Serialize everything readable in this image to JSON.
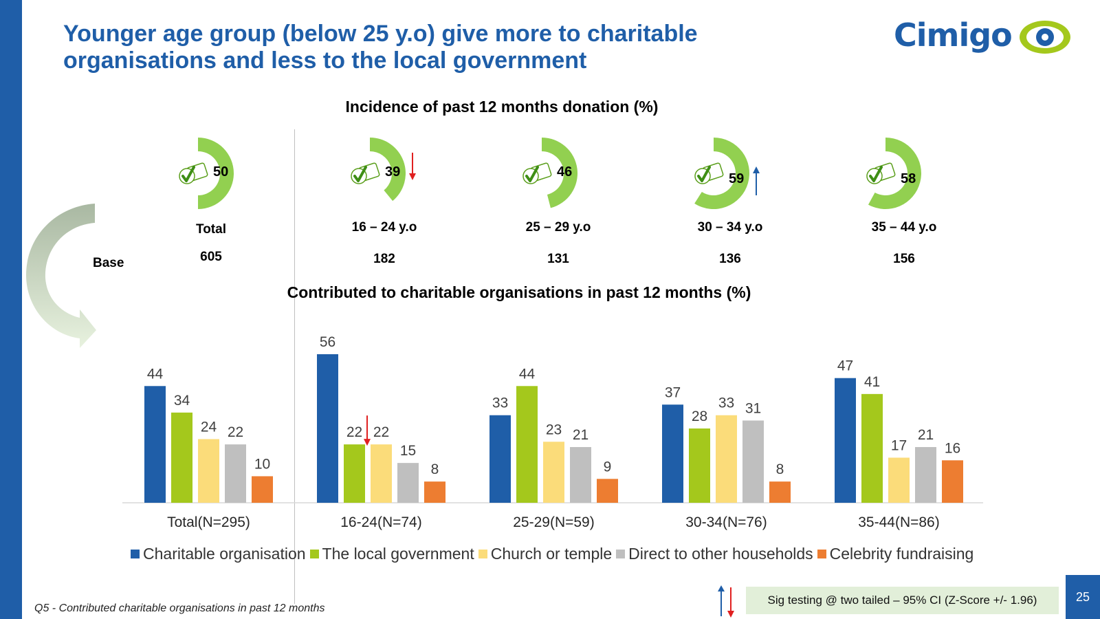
{
  "title": "Younger age group (below 25 y.o) give more to charitable organisations and less to the local government",
  "logo": {
    "text": "Cimigo",
    "icon": "eye-icon"
  },
  "donation": {
    "title": "Incidence of past 12 months donation (%)",
    "base_label": "Base",
    "groups": [
      {
        "label": "Total",
        "value": 50,
        "base": "605",
        "sig": ""
      },
      {
        "label": "16 – 24 y.o",
        "value": 39,
        "base": "182",
        "sig": "down"
      },
      {
        "label": "25 – 29 y.o",
        "value": 46,
        "base": "131",
        "sig": ""
      },
      {
        "label": "30 – 34 y.o",
        "value": 59,
        "base": "136",
        "sig": "up"
      },
      {
        "label": "35 – 44 y.o",
        "value": 58,
        "base": "156",
        "sig": ""
      }
    ],
    "badge_icon": "yes-check-badge-icon"
  },
  "chart_data": {
    "type": "bar",
    "title": "Contributed to charitable organisations in past 12 months (%)",
    "categories": [
      "Total(N=295)",
      "16-24(N=74)",
      "25-29(N=59)",
      "30-34(N=76)",
      "35-44(N=86)"
    ],
    "series": [
      {
        "name": "Charitable organisation",
        "color": "#1f5ea8",
        "values": [
          44,
          56,
          33,
          37,
          47
        ]
      },
      {
        "name": "The local government",
        "color": "#a4c81c",
        "values": [
          34,
          22,
          44,
          28,
          41
        ]
      },
      {
        "name": "Church or temple",
        "color": "#fbdc7a",
        "values": [
          24,
          22,
          23,
          33,
          17
        ]
      },
      {
        "name": "Direct to other households",
        "color": "#bfbfbf",
        "values": [
          22,
          15,
          21,
          31,
          21
        ]
      },
      {
        "name": "Celebrity fundraising",
        "color": "#ed7d31",
        "values": [
          10,
          8,
          9,
          8,
          16
        ]
      }
    ],
    "ylim": [
      0,
      60
    ],
    "grid": false,
    "legend": "bottom",
    "sig_markers": [
      {
        "category": "16-24(N=74)",
        "series": "The local government",
        "direction": "down"
      }
    ]
  },
  "footnote": "Q5 - Contributed charitable organisations in past 12 months",
  "sig_note": "Sig testing @ two tailed – 95% CI (Z-Score +/- 1.96)",
  "page_number": "25",
  "colors": {
    "brand": "#1f5ea8",
    "donut": "#92d050",
    "sig_up": "#1f5ea8",
    "sig_down": "#e02020"
  }
}
